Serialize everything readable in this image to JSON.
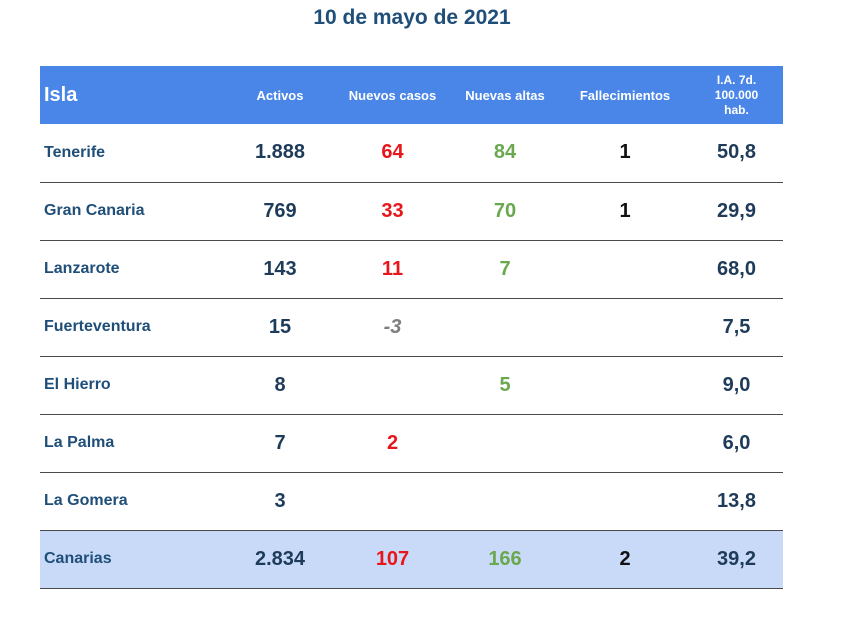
{
  "title": "10 de mayo de 2021",
  "headers": {
    "isla": "Isla",
    "activos": "Activos",
    "nuevos_casos": "Nuevos casos",
    "nuevas_altas": "Nuevas altas",
    "fallecimientos": "Fallecimientos",
    "ia_line1": "I.A. 7d.",
    "ia_line2": "100.000",
    "ia_line3": "hab."
  },
  "rows": [
    {
      "isla": "Tenerife",
      "activos": "1.888",
      "nuevos_casos": "64",
      "nuevas_altas": "84",
      "fallecimientos": "1",
      "ia": "50,8"
    },
    {
      "isla": "Gran Canaria",
      "activos": "769",
      "nuevos_casos": "33",
      "nuevas_altas": "70",
      "fallecimientos": "1",
      "ia": "29,9"
    },
    {
      "isla": "Lanzarote",
      "activos": "143",
      "nuevos_casos": "11",
      "nuevas_altas": "7",
      "fallecimientos": "",
      "ia": "68,0"
    },
    {
      "isla": "Fuerteventura",
      "activos": "15",
      "nuevos_casos": "-3",
      "nuevas_altas": "",
      "fallecimientos": "",
      "ia": "7,5"
    },
    {
      "isla": "El Hierro",
      "activos": "8",
      "nuevos_casos": "",
      "nuevas_altas": "5",
      "fallecimientos": "",
      "ia": "9,0"
    },
    {
      "isla": "La Palma",
      "activos": "7",
      "nuevos_casos": "2",
      "nuevas_altas": "",
      "fallecimientos": "",
      "ia": "6,0"
    },
    {
      "isla": "La Gomera",
      "activos": "3",
      "nuevos_casos": "",
      "nuevas_altas": "",
      "fallecimientos": "",
      "ia": "13,8"
    }
  ],
  "total": {
    "isla": "Canarias",
    "activos": "2.834",
    "nuevos_casos": "107",
    "nuevas_altas": "166",
    "fallecimientos": "2",
    "ia": "39,2"
  },
  "colors": {
    "header_bg": "#4a86e8",
    "total_bg": "#c9daf8",
    "title": "#1f4e79",
    "new_cases": "#e8161b",
    "new_discharges": "#6aa84f",
    "negative": "#7f7f7f"
  }
}
